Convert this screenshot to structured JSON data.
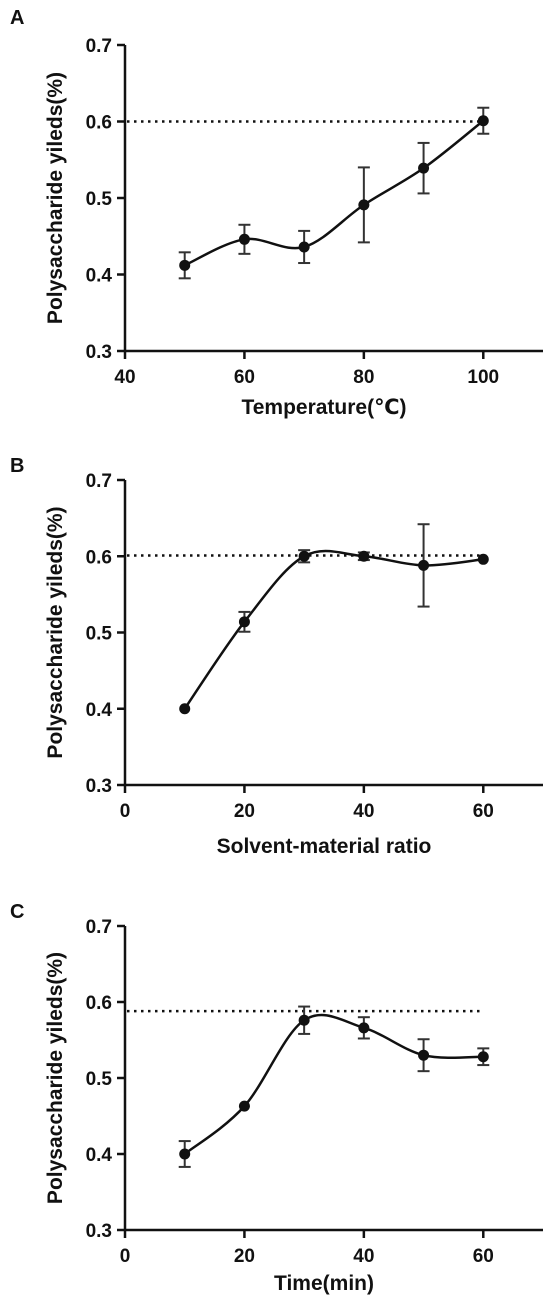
{
  "chart_data": [
    {
      "panel": "A",
      "type": "line",
      "xlabel": "Temperature(℃)",
      "ylabel": "Polysaccharide yileds(%)",
      "xlim": [
        40,
        110
      ],
      "ylim": [
        0.3,
        0.7
      ],
      "xticks": [
        40,
        60,
        80,
        100
      ],
      "yticks": [
        0.3,
        0.4,
        0.5,
        0.6,
        0.7
      ],
      "reference_line_y": 0.6,
      "series": [
        {
          "x": [
            50,
            60,
            70,
            80,
            90,
            100
          ],
          "y": [
            0.412,
            0.446,
            0.436,
            0.491,
            0.539,
            0.601
          ],
          "error": [
            0.017,
            0.019,
            0.021,
            0.049,
            0.033,
            0.017
          ]
        }
      ]
    },
    {
      "panel": "B",
      "type": "line",
      "xlabel": "Solvent-material ratio",
      "ylabel": "Polysaccharide yileds(%)",
      "xlim": [
        0,
        70
      ],
      "ylim": [
        0.3,
        0.7
      ],
      "xticks": [
        0,
        20,
        40,
        60
      ],
      "yticks": [
        0.3,
        0.4,
        0.5,
        0.6,
        0.7
      ],
      "reference_line_y": 0.601,
      "series": [
        {
          "x": [
            10,
            20,
            30,
            40,
            50,
            60
          ],
          "y": [
            0.4,
            0.514,
            0.6,
            0.6,
            0.588,
            0.596
          ],
          "error": [
            0.0,
            0.013,
            0.008,
            0.005,
            0.054,
            0.0
          ]
        }
      ]
    },
    {
      "panel": "C",
      "type": "line",
      "xlabel": "Time(min)",
      "ylabel": "Polysaccharide yileds(%)",
      "xlim": [
        0,
        70
      ],
      "ylim": [
        0.3,
        0.7
      ],
      "xticks": [
        0,
        20,
        40,
        60
      ],
      "yticks": [
        0.3,
        0.4,
        0.5,
        0.6,
        0.7
      ],
      "reference_line_y": 0.588,
      "series": [
        {
          "x": [
            10,
            20,
            30,
            40,
            50,
            60
          ],
          "y": [
            0.4,
            0.463,
            0.576,
            0.566,
            0.53,
            0.528
          ],
          "error": [
            0.017,
            0.0,
            0.018,
            0.014,
            0.021,
            0.011
          ]
        }
      ]
    }
  ]
}
